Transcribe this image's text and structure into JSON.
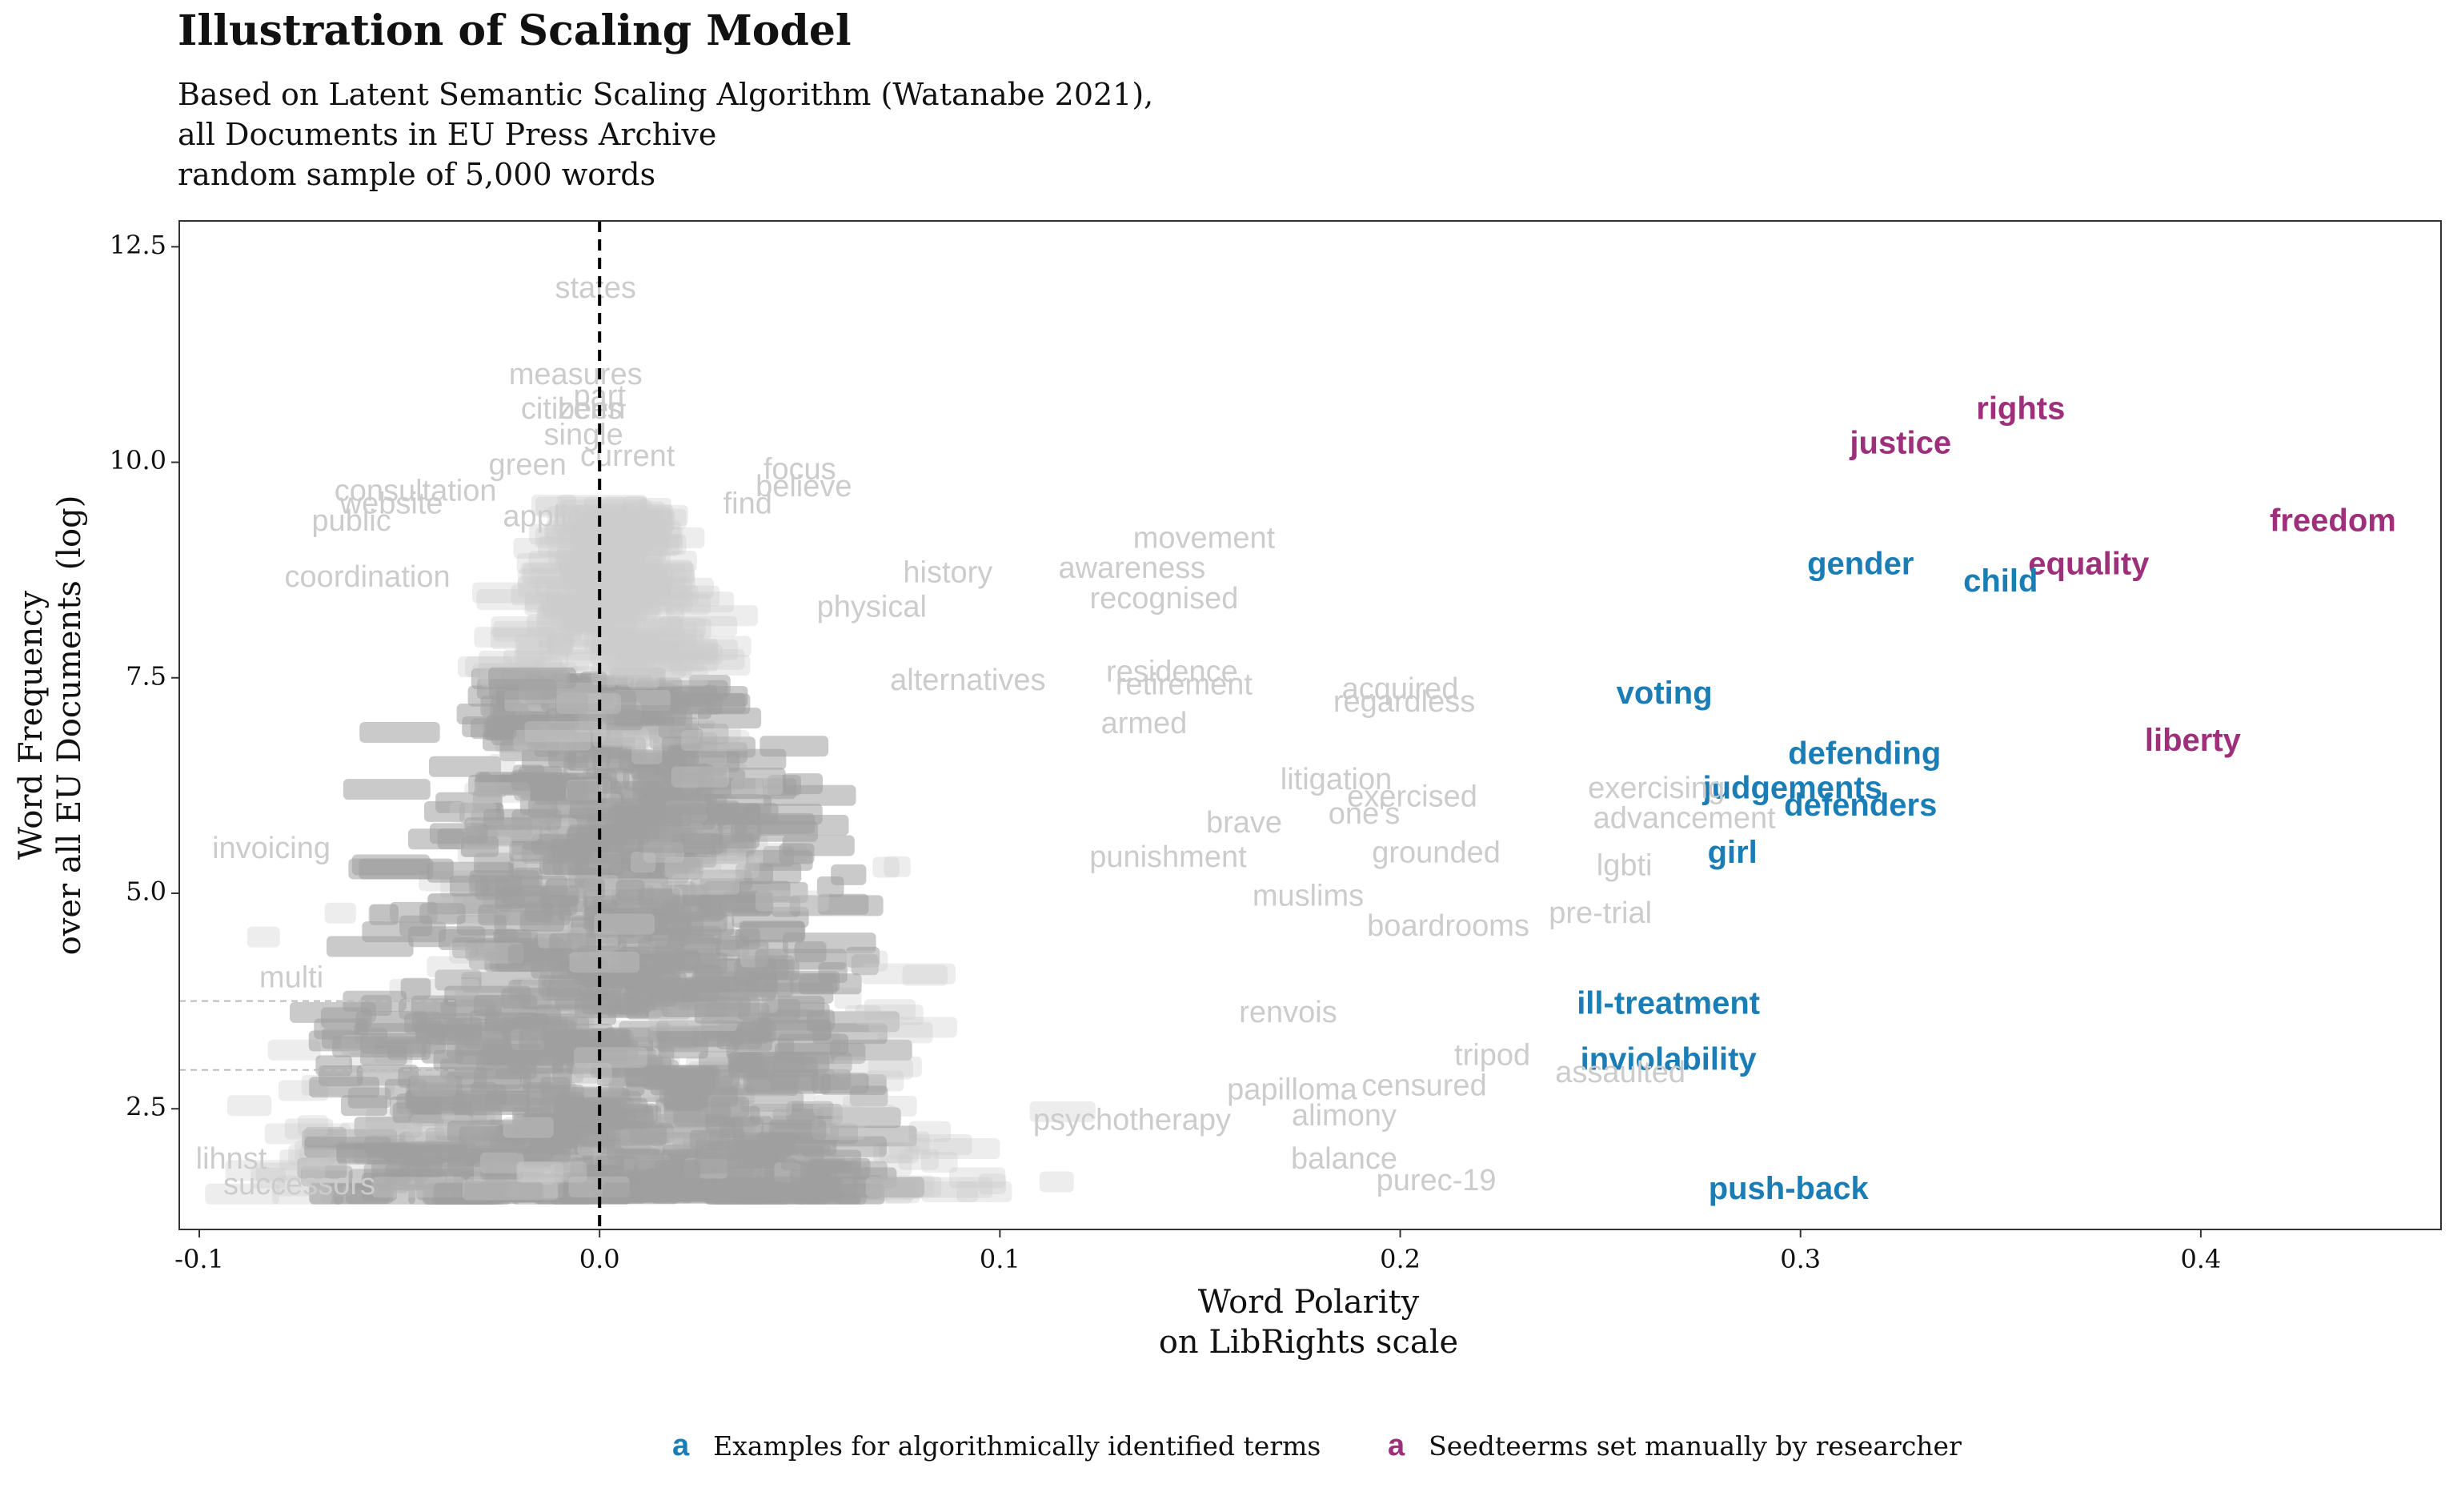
{
  "title": "Illustration of Scaling Model",
  "subtitle": [
    "Based on Latent Semantic Scaling Algorithm (Watanabe 2021),",
    "all Documents in EU Press Archive",
    "random sample of 5,000 words"
  ],
  "colors": {
    "algorithmic": "#1a7db5",
    "seed": "#9e2f7a",
    "background_word": "#cccccc",
    "dense_word": "#9e9e9e",
    "zero_line": "#000000"
  },
  "chart_data": {
    "type": "scatter",
    "title": "Illustration of Scaling Model",
    "xlabel": "Word Polarity\non LibRights scale",
    "ylabel": "Word Frequency\nover all EU Documents (log)",
    "xlim": [
      -0.105,
      0.46
    ],
    "ylim": [
      1.1,
      12.8
    ],
    "x_ticks": [
      -0.1,
      0.0,
      0.1,
      0.2,
      0.3,
      0.4
    ],
    "x_tick_labels": [
      "-0.1",
      "0.0",
      "0.1",
      "0.2",
      "0.3",
      "0.4"
    ],
    "y_ticks": [
      2.5,
      5.0,
      7.5,
      10.0,
      12.5
    ],
    "y_tick_labels": [
      "2.5",
      "5.0",
      "7.5",
      "10.0",
      "12.5"
    ],
    "grid": false,
    "reference_line": {
      "x": 0.0,
      "style": "dashed"
    },
    "legend": {
      "position": "bottom",
      "entries": [
        {
          "key": "a",
          "label": "Examples for algorithmically identified terms",
          "series": "algorithmic"
        },
        {
          "key": "a",
          "label": "Seedteerms set manually by researcher",
          "series": "seed"
        }
      ]
    },
    "series": [
      {
        "name": "Seedteerms set manually by researcher",
        "highlight": "seed",
        "points": [
          {
            "word": "rights",
            "x": 0.355,
            "y": 10.6
          },
          {
            "word": "justice",
            "x": 0.325,
            "y": 10.2
          },
          {
            "word": "freedom",
            "x": 0.433,
            "y": 9.3
          },
          {
            "word": "equality",
            "x": 0.372,
            "y": 8.8
          },
          {
            "word": "liberty",
            "x": 0.398,
            "y": 6.75
          }
        ]
      },
      {
        "name": "Examples for algorithmically identified terms",
        "highlight": "algorithmic",
        "points": [
          {
            "word": "gender",
            "x": 0.315,
            "y": 8.8
          },
          {
            "word": "child",
            "x": 0.35,
            "y": 8.6
          },
          {
            "word": "voting",
            "x": 0.266,
            "y": 7.3
          },
          {
            "word": "defending",
            "x": 0.316,
            "y": 6.6
          },
          {
            "word": "judgements",
            "x": 0.298,
            "y": 6.2
          },
          {
            "word": "defenders",
            "x": 0.315,
            "y": 6.0
          },
          {
            "word": "girl",
            "x": 0.283,
            "y": 5.45
          },
          {
            "word": "ill-treatment",
            "x": 0.267,
            "y": 3.7
          },
          {
            "word": "inviolability",
            "x": 0.267,
            "y": 3.05
          },
          {
            "word": "push-back",
            "x": 0.297,
            "y": 1.55
          }
        ]
      },
      {
        "name": "",
        "highlight": "background",
        "points": [
          {
            "word": "states",
            "x": -0.001,
            "y": 12.0
          },
          {
            "word": "measures",
            "x": -0.006,
            "y": 11.0
          },
          {
            "word": "part",
            "x": 0.0,
            "y": 10.75
          },
          {
            "word": "citizens",
            "x": -0.007,
            "y": 10.6
          },
          {
            "word": "been",
            "x": -0.002,
            "y": 10.6
          },
          {
            "word": "single",
            "x": -0.004,
            "y": 10.3
          },
          {
            "word": "current",
            "x": 0.007,
            "y": 10.05
          },
          {
            "word": "green",
            "x": -0.018,
            "y": 9.95
          },
          {
            "word": "focus",
            "x": 0.05,
            "y": 9.9
          },
          {
            "word": "believe",
            "x": 0.051,
            "y": 9.7
          },
          {
            "word": "consultation",
            "x": -0.046,
            "y": 9.65
          },
          {
            "word": "website",
            "x": -0.052,
            "y": 9.5
          },
          {
            "word": "find",
            "x": 0.037,
            "y": 9.5
          },
          {
            "word": "application",
            "x": -0.006,
            "y": 9.35
          },
          {
            "word": "public",
            "x": -0.062,
            "y": 9.3
          },
          {
            "word": "movement",
            "x": 0.151,
            "y": 9.1
          },
          {
            "word": "history",
            "x": 0.087,
            "y": 8.7
          },
          {
            "word": "awareness",
            "x": 0.133,
            "y": 8.75
          },
          {
            "word": "recognised",
            "x": 0.141,
            "y": 8.4
          },
          {
            "word": "coordination",
            "x": -0.058,
            "y": 8.65
          },
          {
            "word": "physical",
            "x": 0.068,
            "y": 8.3
          },
          {
            "word": "residence",
            "x": 0.143,
            "y": 7.55
          },
          {
            "word": "retirement",
            "x": 0.146,
            "y": 7.4
          },
          {
            "word": "acquired",
            "x": 0.2,
            "y": 7.35
          },
          {
            "word": "regardless",
            "x": 0.201,
            "y": 7.2
          },
          {
            "word": "armed",
            "x": 0.136,
            "y": 6.95
          },
          {
            "word": "alternatives",
            "x": 0.092,
            "y": 7.45
          },
          {
            "word": "litigation",
            "x": 0.184,
            "y": 6.3
          },
          {
            "word": "exercised",
            "x": 0.203,
            "y": 6.1
          },
          {
            "word": "exercising",
            "x": 0.264,
            "y": 6.2
          },
          {
            "word": "one's",
            "x": 0.191,
            "y": 5.9
          },
          {
            "word": "advancement",
            "x": 0.271,
            "y": 5.85
          },
          {
            "word": "brave",
            "x": 0.161,
            "y": 5.8
          },
          {
            "word": "grounded",
            "x": 0.209,
            "y": 5.45
          },
          {
            "word": "lgbti",
            "x": 0.256,
            "y": 5.3
          },
          {
            "word": "punishment",
            "x": 0.142,
            "y": 5.4
          },
          {
            "word": "muslims",
            "x": 0.177,
            "y": 4.95
          },
          {
            "word": "boardrooms",
            "x": 0.212,
            "y": 4.6
          },
          {
            "word": "pre-trial",
            "x": 0.25,
            "y": 4.75
          },
          {
            "word": "tripod",
            "x": 0.223,
            "y": 3.1
          },
          {
            "word": "assaulted",
            "x": 0.255,
            "y": 2.9
          },
          {
            "word": "censured",
            "x": 0.206,
            "y": 2.75
          },
          {
            "word": "alimony",
            "x": 0.186,
            "y": 2.4
          },
          {
            "word": "papilloma",
            "x": 0.173,
            "y": 2.7
          },
          {
            "word": "psychotherapy",
            "x": 0.133,
            "y": 2.35
          },
          {
            "word": "renvois",
            "x": 0.172,
            "y": 3.6
          },
          {
            "word": "balance",
            "x": 0.186,
            "y": 1.9
          },
          {
            "word": "purec-19",
            "x": 0.209,
            "y": 1.65
          },
          {
            "word": "invoicing",
            "x": -0.082,
            "y": 5.5
          },
          {
            "word": "multi",
            "x": -0.077,
            "y": 4.0
          },
          {
            "word": "lihnst",
            "x": -0.092,
            "y": 1.9
          },
          {
            "word": "successors",
            "x": -0.075,
            "y": 1.6
          }
        ]
      }
    ]
  }
}
